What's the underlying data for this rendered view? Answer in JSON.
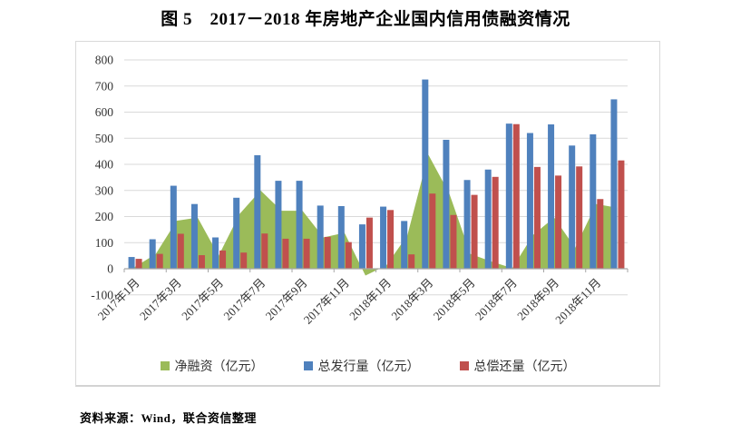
{
  "title": "图 5　2017－2018 年房地产企业国内信用债融资情况",
  "source": "资料来源：Wind，联合资信整理",
  "colors": {
    "area_green": "#9bbb59",
    "bar_blue": "#4f81bd",
    "bar_red": "#c0504d",
    "gridline": "#d9d9d9",
    "axis_line": "#a6a6a6",
    "tick_text": "#333333"
  },
  "chart_data": {
    "type": "combo: area + grouped bar",
    "title": "图 5　2017－2018 年房地产企业国内信用债融资情况",
    "xlabel": "",
    "ylabel": "",
    "ylim": [
      -100,
      800
    ],
    "yticks": [
      800,
      700,
      600,
      500,
      400,
      300,
      200,
      100,
      0,
      -100
    ],
    "grid": true,
    "legend_position": "bottom",
    "categories": [
      "2017年1月",
      "2017年2月",
      "2017年3月",
      "2017年4月",
      "2017年5月",
      "2017年6月",
      "2017年7月",
      "2017年8月",
      "2017年9月",
      "2017年10月",
      "2017年11月",
      "2017年12月",
      "2018年1月",
      "2018年2月",
      "2018年3月",
      "2018年4月",
      "2018年5月",
      "2018年6月",
      "2018年7月",
      "2018年8月",
      "2018年9月",
      "2018年10月",
      "2018年11月",
      "2018年12月"
    ],
    "xticklabels": [
      "2017年1月",
      "2017年3月",
      "2017年5月",
      "2017年7月",
      "2017年9月",
      "2017年11月",
      "2018年1月",
      "2018年3月",
      "2018年5月",
      "2018年7月",
      "2018年9月",
      "2018年11月"
    ],
    "series": [
      {
        "name": "净融资（亿元）",
        "type": "area",
        "color": "#9bbb59",
        "values": [
          7,
          56,
          184,
          196,
          50,
          210,
          300,
          222,
          222,
          120,
          138,
          -26,
          13,
          128,
          437,
          288,
          57,
          28,
          2,
          130,
          196,
          80,
          248,
          234
        ]
      },
      {
        "name": "总发行量（亿元）",
        "type": "bar",
        "color": "#4f81bd",
        "values": [
          45,
          113,
          318,
          248,
          120,
          272,
          435,
          337,
          337,
          242,
          240,
          170,
          238,
          183,
          725,
          494,
          340,
          380,
          556,
          520,
          553,
          472,
          515,
          649
        ]
      },
      {
        "name": "总偿还量（亿元）",
        "type": "bar",
        "color": "#c0504d",
        "values": [
          38,
          57,
          134,
          52,
          70,
          62,
          135,
          115,
          115,
          122,
          102,
          196,
          225,
          55,
          288,
          206,
          283,
          352,
          554,
          390,
          357,
          392,
          267,
          415
        ]
      }
    ]
  }
}
